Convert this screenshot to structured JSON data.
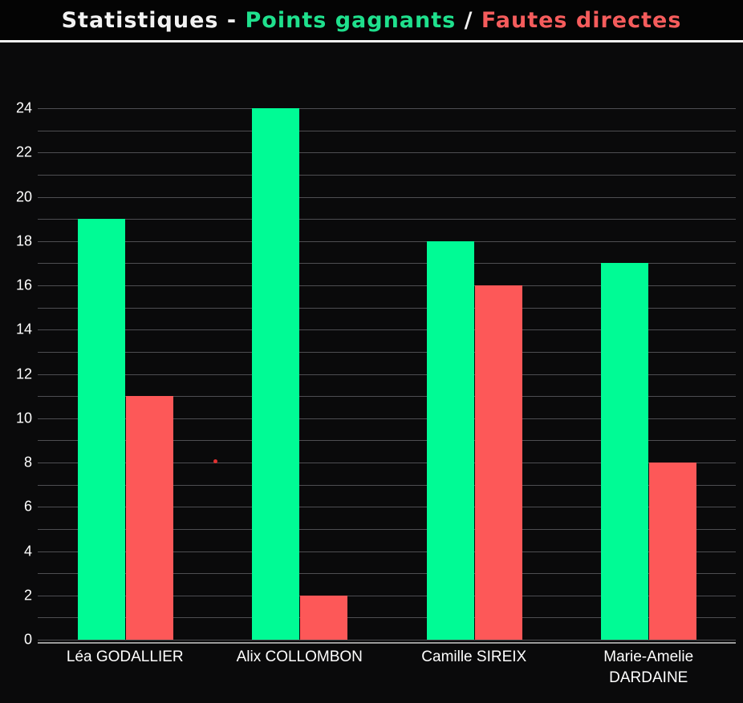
{
  "title": {
    "part_main": "Statistiques - ",
    "part_winners": "Points gagnants",
    "part_slash": " / ",
    "part_faults": "Fautes directes"
  },
  "colors": {
    "background": "#0a0a0b",
    "header_background": "#040404",
    "divider": "#f4f4f4",
    "title_white": "#f2f2f2",
    "title_green": "#1fe08d",
    "title_red": "#f55c5c",
    "bar_green": "#00fb95",
    "bar_red": "#fd5858",
    "gridline": "#4e4e52",
    "axis_line": "#9b9b9b",
    "label_text": "#ffffff",
    "stray_dot": "#e23030"
  },
  "chart_data": {
    "type": "bar",
    "title": "Statistiques - Points gagnants / Fautes directes",
    "categories": [
      "Léa GODALLIER",
      "Alix COLLOMBON",
      "Camille SIREIX",
      "Marie-Amelie DARDAINE"
    ],
    "series": [
      {
        "name": "Points gagnants",
        "color": "#00fb95",
        "values": [
          19,
          24,
          18,
          17
        ]
      },
      {
        "name": "Fautes directes",
        "color": "#fd5858",
        "values": [
          11,
          2,
          16,
          8
        ]
      }
    ],
    "xlabel": "",
    "ylabel": "",
    "ylim": [
      0,
      24
    ],
    "yticks": [
      0,
      2,
      4,
      6,
      8,
      10,
      12,
      14,
      16,
      18,
      20,
      22,
      24
    ],
    "grid_step": 1,
    "grid_on": true,
    "legend_position": "encoded-in-title-colors",
    "annotations": [
      {
        "type": "stray-point",
        "series": "Fautes directes",
        "approx_value": 8.1,
        "between_groups": [
          "Léa GODALLIER",
          "Alix COLLOMBON"
        ]
      }
    ]
  }
}
